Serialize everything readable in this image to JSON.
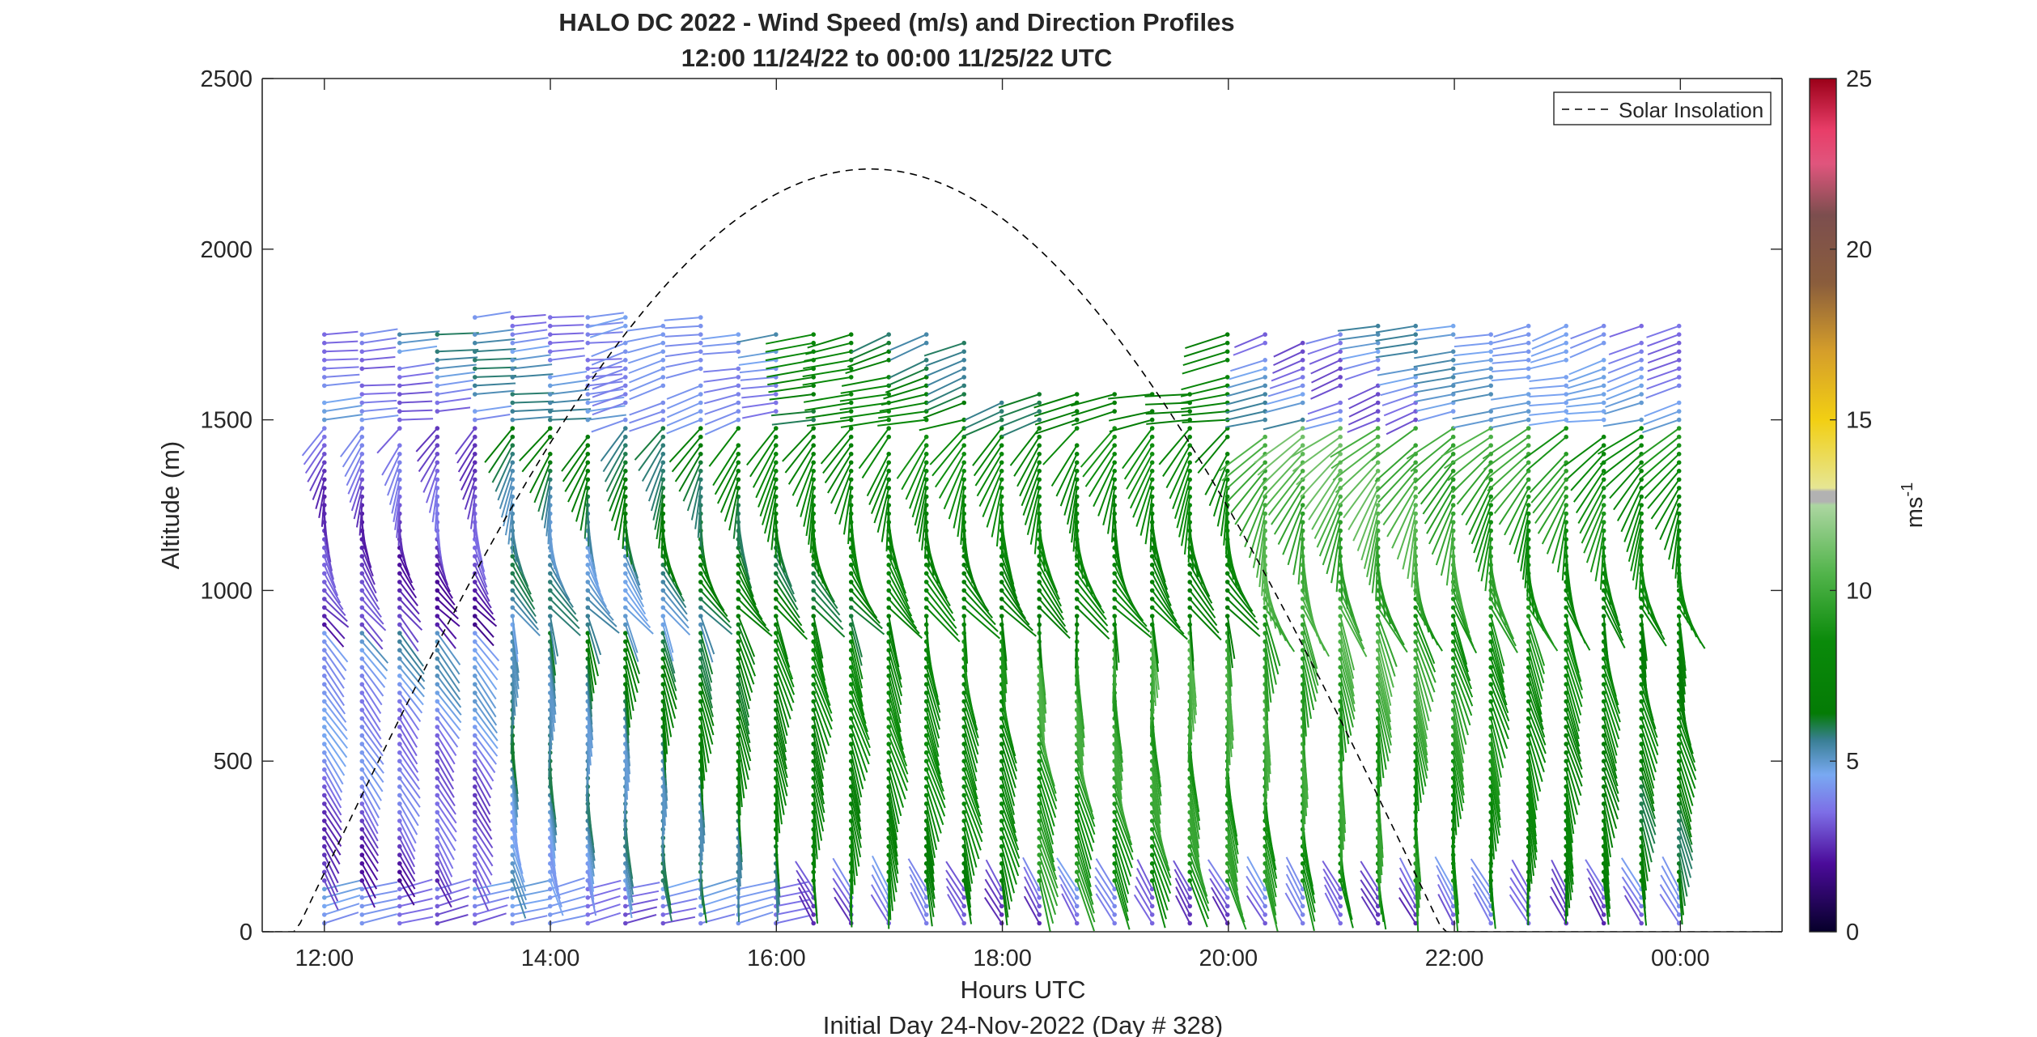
{
  "chart_data": {
    "type": "scatter",
    "title": "HALO DC 2022 - Wind Speed (m/s) and Direction Profiles",
    "subtitle": "12:00 11/24/22 to 00:00 11/25/22  UTC",
    "xlabel": "Hours UTC",
    "xlabel2": "Initial Day 24-Nov-2022 (Day # 328)",
    "ylabel": "Altitude (m)",
    "xlim": [
      11.45,
      24.9
    ],
    "ylim": [
      0,
      2500
    ],
    "x_ticks": [
      12,
      14,
      16,
      18,
      20,
      22,
      24
    ],
    "x_tick_labels": [
      "12:00",
      "14:00",
      "16:00",
      "18:00",
      "20:00",
      "22:00",
      "00:00"
    ],
    "y_ticks": [
      0,
      500,
      1000,
      1500,
      2000,
      2500
    ],
    "y_tick_labels": [
      "0",
      "500",
      "1000",
      "1500",
      "2000",
      "2500"
    ],
    "grid": false,
    "legend": {
      "position": "top-right",
      "entries": [
        "Solar Insolation"
      ]
    },
    "colorbar": {
      "label_base": "ms",
      "label_exp": "-1",
      "range": [
        0,
        25
      ],
      "ticks": [
        0,
        5,
        10,
        15,
        20,
        25
      ],
      "tick_labels": [
        "0",
        "5",
        "10",
        "15",
        "20",
        "25"
      ],
      "stops": [
        [
          0,
          "#06002a"
        ],
        [
          2,
          "#4b0b9a"
        ],
        [
          3.5,
          "#7d6ee6"
        ],
        [
          4.6,
          "#79a9f2"
        ],
        [
          5.6,
          "#3a7f96"
        ],
        [
          6.4,
          "#047b05"
        ],
        [
          8.5,
          "#0a8a0a"
        ],
        [
          10.5,
          "#52b44b"
        ],
        [
          12.5,
          "#acd6a1"
        ],
        [
          12.6,
          "#b2b2b2"
        ],
        [
          12.9,
          "#b2b2b2"
        ],
        [
          13,
          "#e6e694"
        ],
        [
          15,
          "#f2cf13"
        ],
        [
          17,
          "#d59e2a"
        ],
        [
          19,
          "#8a5d3c"
        ],
        [
          21,
          "#7c4e4e"
        ],
        [
          22.5,
          "#e0557d"
        ],
        [
          23.5,
          "#e83d68"
        ],
        [
          25,
          "#9a0018"
        ]
      ]
    },
    "solar_insolation": {
      "style": "dashed",
      "color": "#000000",
      "sunrise": 11.75,
      "sunset": 21.9,
      "peak_x": 16.83,
      "peak_altitude": 2235
    },
    "wind_profiles": {
      "start_hour": 12.0,
      "interval_hours": 0.333,
      "count": 37,
      "altitude_step_m": 25,
      "max_altitude_m": 1800
    }
  }
}
